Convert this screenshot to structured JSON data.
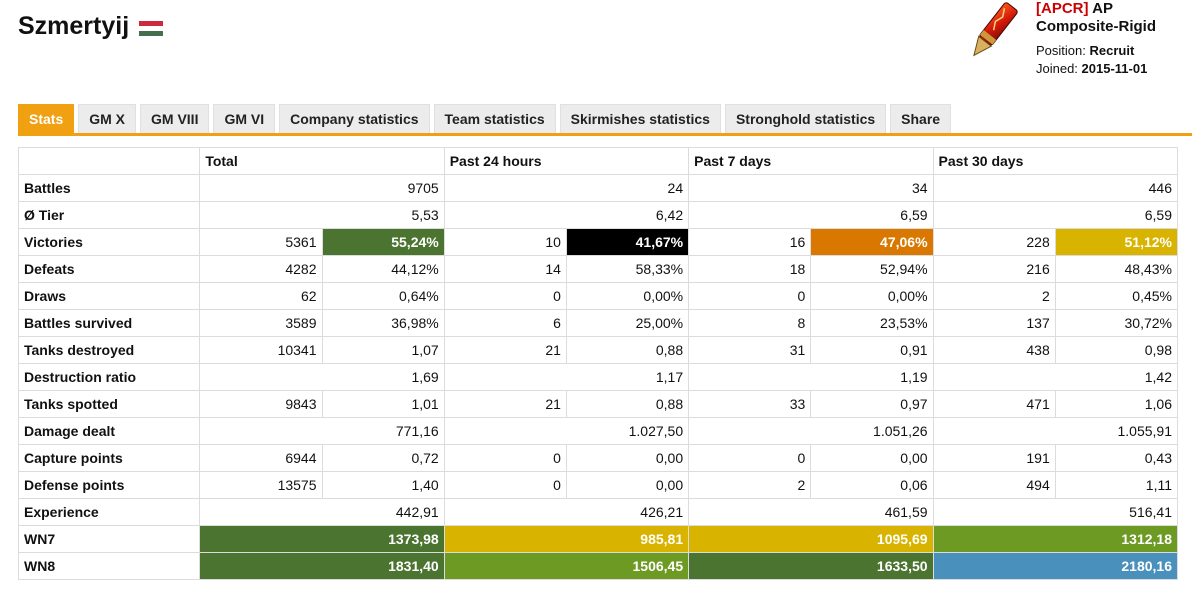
{
  "player": {
    "name": "Szmertyij",
    "flag_colors": [
      "#cd2a3e",
      "#ffffff",
      "#436f4d"
    ]
  },
  "clan": {
    "tag": "APCR",
    "name_part1": "AP",
    "name_part2": "Composite-Rigid",
    "position_label": "Position:",
    "position_value": "Recruit",
    "joined_label": "Joined:",
    "joined_value": "2015-11-01"
  },
  "tabs": [
    {
      "label": "Stats",
      "active": true
    },
    {
      "label": "GM X"
    },
    {
      "label": "GM VIII"
    },
    {
      "label": "GM VI"
    },
    {
      "label": "Company statistics"
    },
    {
      "label": "Team statistics"
    },
    {
      "label": "Skirmishes statistics"
    },
    {
      "label": "Stronghold statistics"
    },
    {
      "label": "Share"
    }
  ],
  "colors": {
    "accent": "#f0a010",
    "dark_green": "#4b7430",
    "green": "#6c9a22",
    "black": "#000000",
    "orange": "#d97800",
    "yellow": "#d8b400",
    "blue": "#4a90bd"
  },
  "table": {
    "headers": [
      "",
      "Total",
      "Past 24 hours",
      "Past 7 days",
      "Past 30 days"
    ],
    "rows": [
      {
        "label": "Battles",
        "type": "single",
        "cells": [
          "9705",
          "24",
          "34",
          "446"
        ]
      },
      {
        "label": "Ø Tier",
        "type": "single",
        "cells": [
          "5,53",
          "6,42",
          "6,59",
          "6,59"
        ]
      },
      {
        "label": "Victories",
        "type": "pair",
        "cells": [
          [
            "5361",
            "55,24%",
            "#4b7430"
          ],
          [
            "10",
            "41,67%",
            "#000000"
          ],
          [
            "16",
            "47,06%",
            "#d97800"
          ],
          [
            "228",
            "51,12%",
            "#d8b400"
          ]
        ]
      },
      {
        "label": "Defeats",
        "type": "pair",
        "cells": [
          [
            "4282",
            "44,12%"
          ],
          [
            "14",
            "58,33%"
          ],
          [
            "18",
            "52,94%"
          ],
          [
            "216",
            "48,43%"
          ]
        ]
      },
      {
        "label": "Draws",
        "type": "pair",
        "cells": [
          [
            "62",
            "0,64%"
          ],
          [
            "0",
            "0,00%"
          ],
          [
            "0",
            "0,00%"
          ],
          [
            "2",
            "0,45%"
          ]
        ]
      },
      {
        "label": "Battles survived",
        "type": "pair",
        "cells": [
          [
            "3589",
            "36,98%"
          ],
          [
            "6",
            "25,00%"
          ],
          [
            "8",
            "23,53%"
          ],
          [
            "137",
            "30,72%"
          ]
        ]
      },
      {
        "label": "Tanks destroyed",
        "type": "pair",
        "cells": [
          [
            "10341",
            "1,07"
          ],
          [
            "21",
            "0,88"
          ],
          [
            "31",
            "0,91"
          ],
          [
            "438",
            "0,98"
          ]
        ]
      },
      {
        "label": "Destruction ratio",
        "type": "single",
        "cells": [
          "1,69",
          "1,17",
          "1,19",
          "1,42"
        ]
      },
      {
        "label": "Tanks spotted",
        "type": "pair",
        "cells": [
          [
            "9843",
            "1,01"
          ],
          [
            "21",
            "0,88"
          ],
          [
            "33",
            "0,97"
          ],
          [
            "471",
            "1,06"
          ]
        ]
      },
      {
        "label": "Damage dealt",
        "type": "single",
        "cells": [
          "771,16",
          "1.027,50",
          "1.051,26",
          "1.055,91"
        ]
      },
      {
        "label": "Capture points",
        "type": "pair",
        "cells": [
          [
            "6944",
            "0,72"
          ],
          [
            "0",
            "0,00"
          ],
          [
            "0",
            "0,00"
          ],
          [
            "191",
            "0,43"
          ]
        ]
      },
      {
        "label": "Defense points",
        "type": "pair",
        "cells": [
          [
            "13575",
            "1,40"
          ],
          [
            "0",
            "0,00"
          ],
          [
            "2",
            "0,06"
          ],
          [
            "494",
            "1,11"
          ]
        ]
      },
      {
        "label": "Experience",
        "type": "single",
        "cells": [
          "442,91",
          "426,21",
          "461,59",
          "516,41"
        ]
      },
      {
        "label": "WN7",
        "type": "colored",
        "cells": [
          [
            "1373,98",
            "#4b7430"
          ],
          [
            "985,81",
            "#d8b400"
          ],
          [
            "1095,69",
            "#d8b400"
          ],
          [
            "1312,18",
            "#6c9a22"
          ]
        ]
      },
      {
        "label": "WN8",
        "type": "colored",
        "cells": [
          [
            "1831,40",
            "#4b7430"
          ],
          [
            "1506,45",
            "#6c9a22"
          ],
          [
            "1633,50",
            "#4b7430"
          ],
          [
            "2180,16",
            "#4a90bd"
          ]
        ]
      }
    ]
  }
}
